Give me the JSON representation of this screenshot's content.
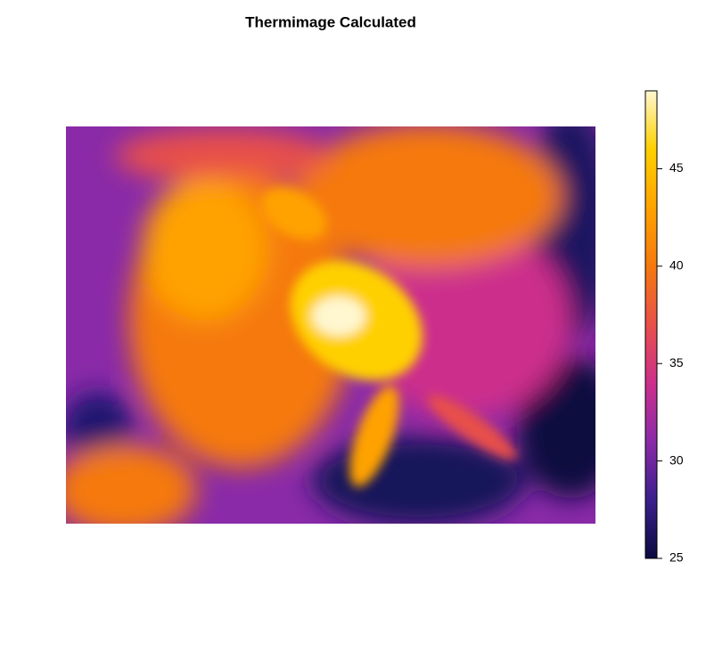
{
  "chart_data": {
    "type": "heatmap",
    "title": "Thermimage Calculated",
    "zlim": [
      25,
      49
    ],
    "zticks": [
      25,
      30,
      35,
      40,
      45
    ],
    "colors": [
      "#0b0b3f",
      "#3a1f8c",
      "#8a2aa8",
      "#cc2f8c",
      "#e8504a",
      "#f5790f",
      "#ffa200",
      "#ffd000",
      "#fff7d0"
    ]
  }
}
